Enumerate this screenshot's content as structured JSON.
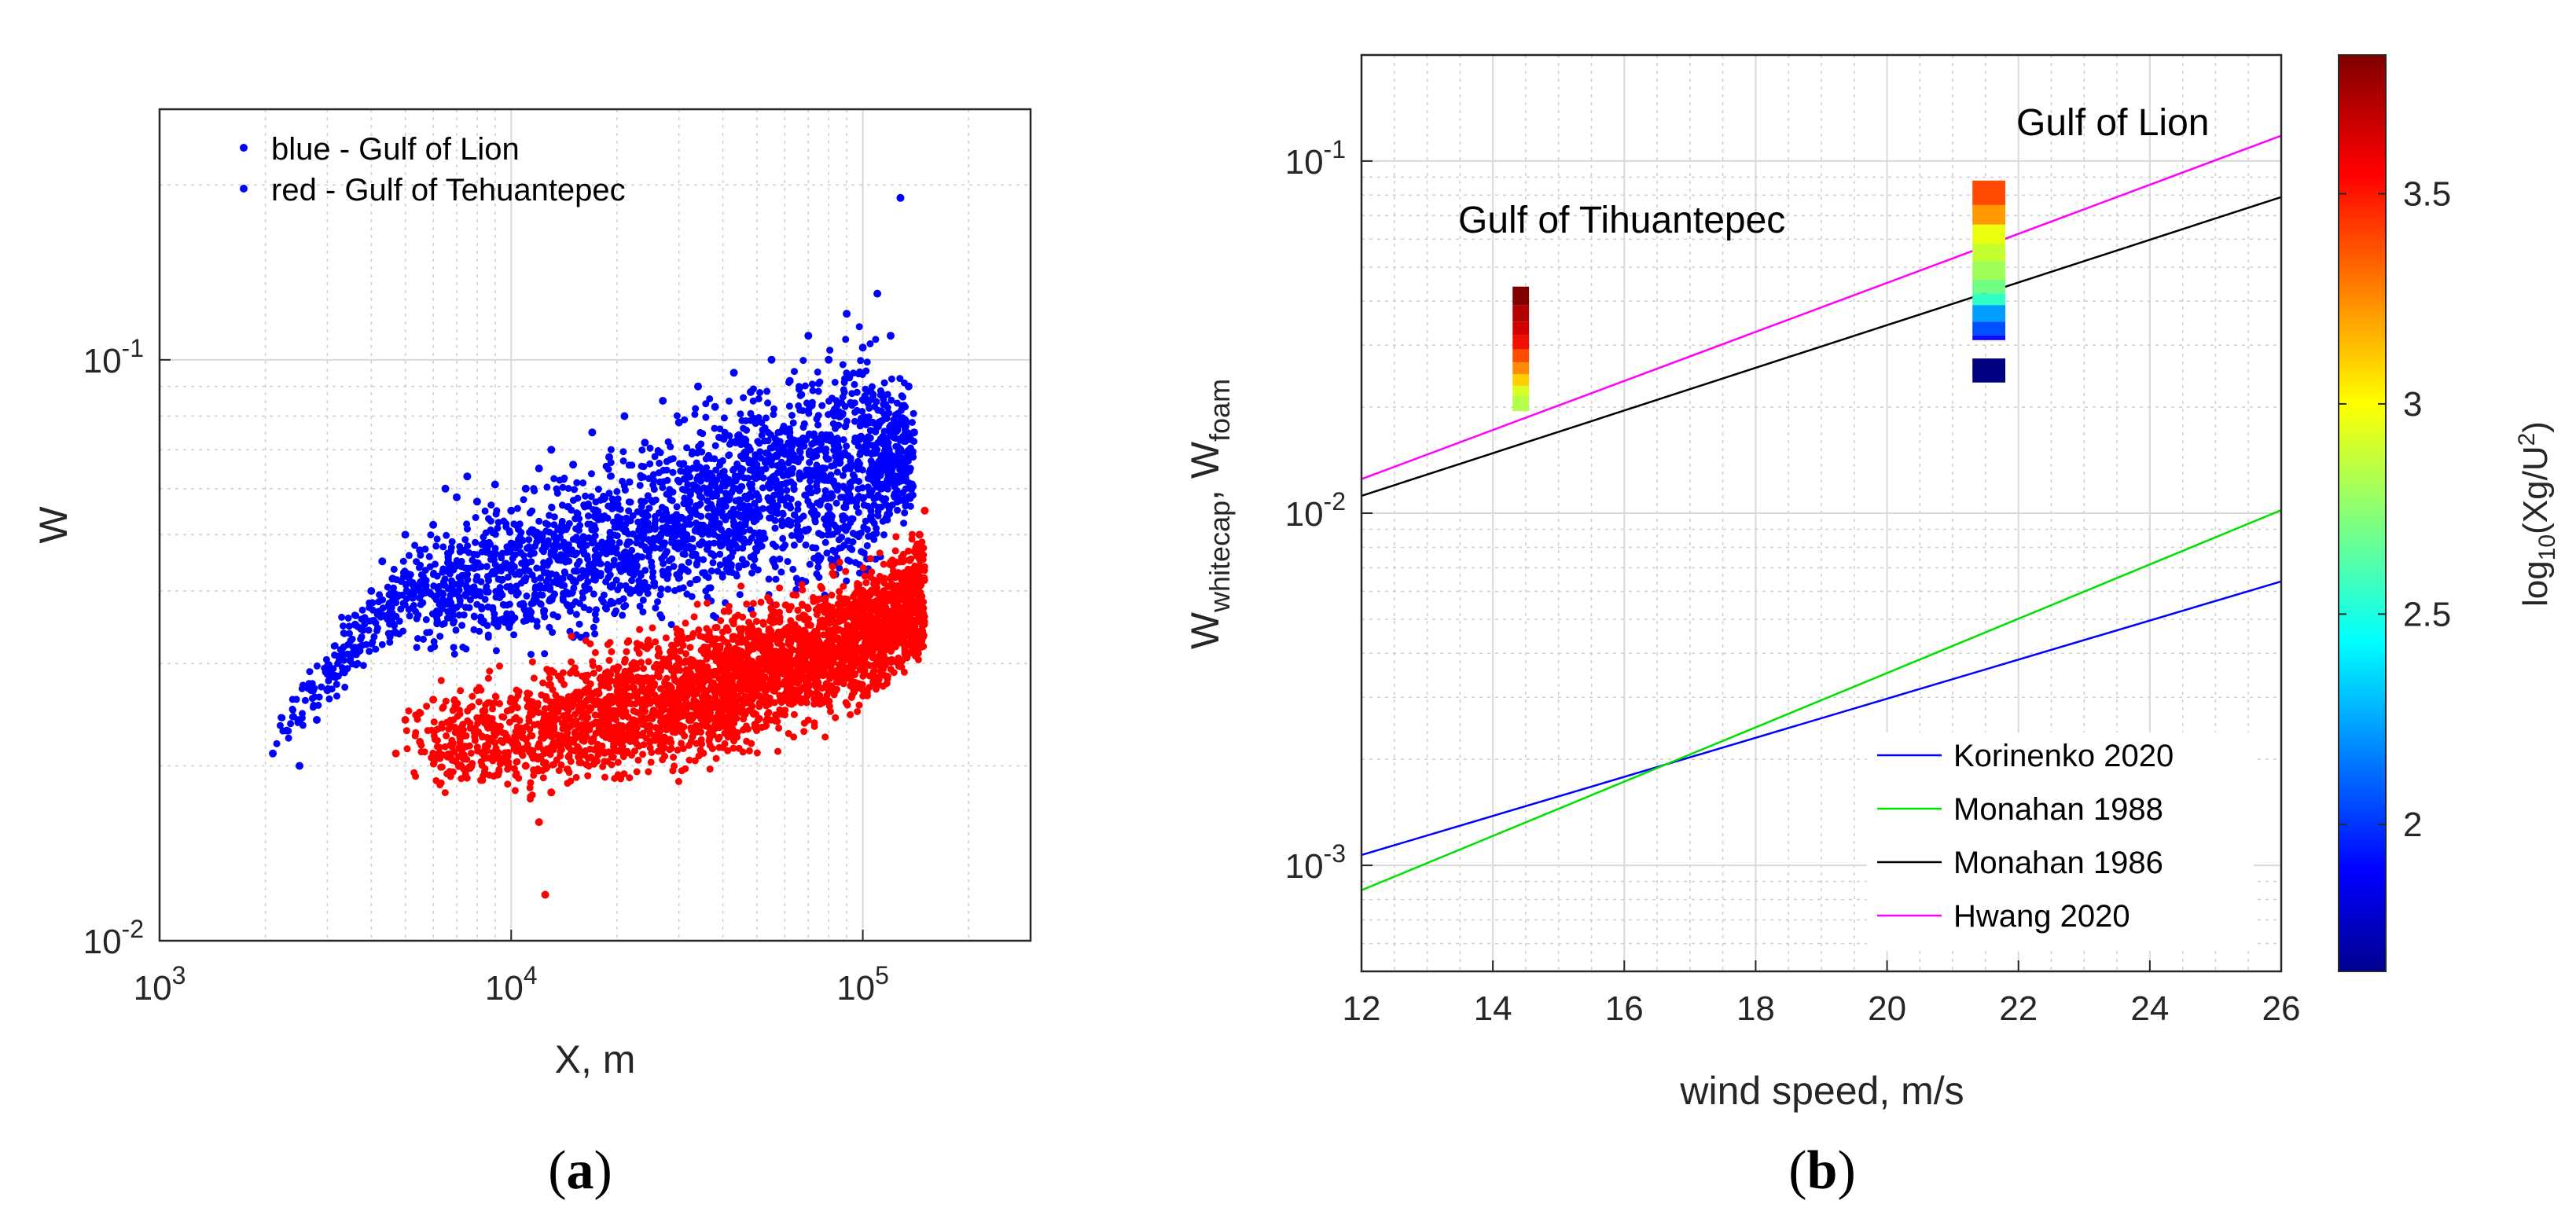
{
  "chart_data": [
    {
      "type": "scatter",
      "panel_label": "(a)",
      "xlabel": "X, m",
      "ylabel": "W",
      "xscale": "log",
      "yscale": "log",
      "xlim": [
        1000,
        300000
      ],
      "ylim": [
        0.01,
        0.27
      ],
      "x_ticks": [
        {
          "base": "10",
          "exp": "3",
          "value": 1000
        },
        {
          "base": "10",
          "exp": "4",
          "value": 10000
        },
        {
          "base": "10",
          "exp": "5",
          "value": 100000
        }
      ],
      "y_ticks": [
        {
          "base": "10",
          "exp": "-2",
          "value": 0.01
        },
        {
          "base": "10",
          "exp": "-1",
          "value": 0.1
        }
      ],
      "grid": true,
      "legend_position": "top-left",
      "legend": [
        "blue - Gulf of Lion",
        "red - Gulf of Tehuantepec"
      ],
      "series": [
        {
          "name": "blue - Gulf of Lion",
          "color": "#0000ff",
          "points": [
            [
              2100,
              0.021
            ],
            [
              2300,
              0.023
            ],
            [
              2500,
              0.02
            ],
            [
              2800,
              0.024
            ],
            [
              3000,
              0.027
            ],
            [
              3300,
              0.031
            ],
            [
              3600,
              0.035
            ],
            [
              4000,
              0.04
            ],
            [
              4300,
              0.045
            ],
            [
              4600,
              0.042
            ],
            [
              5000,
              0.05
            ],
            [
              5500,
              0.047
            ],
            [
              6000,
              0.052
            ],
            [
              6500,
              0.06
            ],
            [
              7000,
              0.058
            ],
            [
              7500,
              0.063
            ],
            [
              8000,
              0.057
            ],
            [
              9000,
              0.061
            ],
            [
              10000,
              0.055
            ],
            [
              11000,
              0.06
            ],
            [
              12000,
              0.065
            ],
            [
              13000,
              0.07
            ],
            [
              15000,
              0.066
            ],
            [
              17000,
              0.075
            ],
            [
              19000,
              0.068
            ],
            [
              21000,
              0.08
            ],
            [
              24000,
              0.072
            ],
            [
              27000,
              0.085
            ],
            [
              30000,
              0.078
            ],
            [
              34000,
              0.09
            ],
            [
              38000,
              0.083
            ],
            [
              43000,
              0.095
            ],
            [
              48000,
              0.088
            ],
            [
              55000,
              0.1
            ],
            [
              62000,
              0.092
            ],
            [
              70000,
              0.11
            ],
            [
              80000,
              0.1
            ],
            [
              90000,
              0.12
            ],
            [
              100000,
              0.105
            ],
            [
              110000,
              0.13
            ],
            [
              120000,
              0.11
            ],
            [
              128000,
              0.19
            ],
            [
              135000,
              0.09
            ],
            [
              140000,
              0.075
            ]
          ],
          "y_range_per_x": [
            [
              2100,
              0.02,
              0.024
            ],
            [
              5000,
              0.03,
              0.05
            ],
            [
              10000,
              0.028,
              0.065
            ],
            [
              20000,
              0.03,
              0.075
            ],
            [
              50000,
              0.035,
              0.1
            ],
            [
              100000,
              0.035,
              0.13
            ],
            [
              140000,
              0.05,
              0.09
            ]
          ]
        },
        {
          "name": "red - Gulf of Tehuantepec",
          "color": "#ff0000",
          "points": [
            [
              4700,
              0.021
            ],
            [
              5000,
              0.024
            ],
            [
              5500,
              0.022
            ],
            [
              6000,
              0.026
            ],
            [
              7000,
              0.023
            ],
            [
              8000,
              0.027
            ],
            [
              9000,
              0.021
            ],
            [
              10000,
              0.025
            ],
            [
              11000,
              0.02
            ],
            [
              12000,
              0.016
            ],
            [
              12500,
              0.012
            ],
            [
              13000,
              0.018
            ],
            [
              15000,
              0.022
            ],
            [
              17000,
              0.026
            ],
            [
              20000,
              0.028
            ],
            [
              25000,
              0.027
            ],
            [
              30000,
              0.03
            ],
            [
              40000,
              0.029
            ],
            [
              50000,
              0.033
            ],
            [
              60000,
              0.031
            ],
            [
              70000,
              0.035
            ],
            [
              80000,
              0.034
            ],
            [
              90000,
              0.037
            ],
            [
              100000,
              0.04
            ],
            [
              115000,
              0.042
            ],
            [
              130000,
              0.045
            ],
            [
              145000,
              0.05
            ],
            [
              150000,
              0.055
            ]
          ],
          "y_range_per_x": [
            [
              5000,
              0.018,
              0.028
            ],
            [
              10000,
              0.016,
              0.031
            ],
            [
              20000,
              0.017,
              0.036
            ],
            [
              50000,
              0.02,
              0.042
            ],
            [
              100000,
              0.023,
              0.048
            ],
            [
              150000,
              0.028,
              0.055
            ]
          ]
        }
      ]
    },
    {
      "type": "line",
      "panel_label": "(b)",
      "xlabel": "wind speed, m/s",
      "ylabel_main_1": "W",
      "ylabel_sub_1": "whitecap",
      "ylabel_sep": ", ",
      "ylabel_main_2": "W",
      "ylabel_sub_2": "foam",
      "xscale": "linear",
      "yscale": "log",
      "xlim": [
        12,
        26
      ],
      "ylim": [
        0.0005,
        0.2
      ],
      "x_ticks": [
        "12",
        "14",
        "16",
        "18",
        "20",
        "22",
        "24",
        "26"
      ],
      "y_ticks": [
        {
          "base": "10",
          "exp": "-3",
          "value": 0.001
        },
        {
          "base": "10",
          "exp": "-2",
          "value": 0.01
        },
        {
          "base": "10",
          "exp": "-1",
          "value": 0.1
        }
      ],
      "grid": true,
      "legend_position": "bottom-right",
      "series": [
        {
          "name": "Korinenko 2020",
          "color": "#0000ff",
          "x": [
            12,
            26
          ],
          "y": [
            0.00107,
            0.0064
          ]
        },
        {
          "name": "Monahan 1988",
          "color": "#00e000",
          "x": [
            12,
            26
          ],
          "y": [
            0.00085,
            0.0102
          ]
        },
        {
          "name": "Monahan 1986",
          "color": "#000000",
          "x": [
            12,
            26
          ],
          "y": [
            0.0112,
            0.079
          ]
        },
        {
          "name": "Hwang 2020",
          "color": "#ff00ff",
          "x": [
            12,
            26
          ],
          "y": [
            0.0125,
            0.118
          ]
        }
      ],
      "annotations": [
        "Gulf of Tihuantepec",
        "Gulf of Lion"
      ],
      "color_bars": [
        {
          "label": "Gulf of Tihuantepec",
          "x_range": [
            14.3,
            14.55
          ],
          "cells": [
            [
              0.0195,
              0.0215,
              "#b4ff4a"
            ],
            [
              0.0215,
              0.023,
              "#d8ff26"
            ],
            [
              0.023,
              0.0248,
              "#ffd000"
            ],
            [
              0.0248,
              0.0268,
              "#ff8c00"
            ],
            [
              0.0268,
              0.0292,
              "#ff4d00"
            ],
            [
              0.0292,
              0.032,
              "#f01000"
            ],
            [
              0.032,
              0.035,
              "#d40000"
            ],
            [
              0.035,
              0.039,
              "#b00000"
            ],
            [
              0.039,
              0.044,
              "#800000"
            ]
          ]
        },
        {
          "label": "Gulf of Lion",
          "x_range": [
            21.3,
            21.8
          ],
          "cells": [
            [
              0.0235,
              0.0275,
              "#000080"
            ],
            [
              0.031,
              0.032,
              "#0a0aff"
            ],
            [
              0.032,
              0.035,
              "#0050ff"
            ],
            [
              0.035,
              0.039,
              "#009dff"
            ],
            [
              0.039,
              0.042,
              "#30ffc8"
            ],
            [
              0.042,
              0.046,
              "#70ff86"
            ],
            [
              0.046,
              0.052,
              "#a0ff56"
            ],
            [
              0.052,
              0.058,
              "#c4ff32"
            ],
            [
              0.058,
              0.066,
              "#e8ff10"
            ],
            [
              0.066,
              0.075,
              "#ff9a00"
            ],
            [
              0.075,
              0.088,
              "#ff4a00"
            ]
          ]
        }
      ],
      "colorbar": {
        "label_main": "log",
        "label_sub": "10",
        "label_rest": "(Xg/U",
        "label_sup": "2",
        "label_close": ")",
        "range": [
          1.65,
          3.83
        ],
        "ticks": [
          "2",
          "2.5",
          "3",
          "3.5"
        ],
        "tick_values": [
          2,
          2.5,
          3,
          3.5
        ],
        "colormap": "jet"
      }
    }
  ]
}
